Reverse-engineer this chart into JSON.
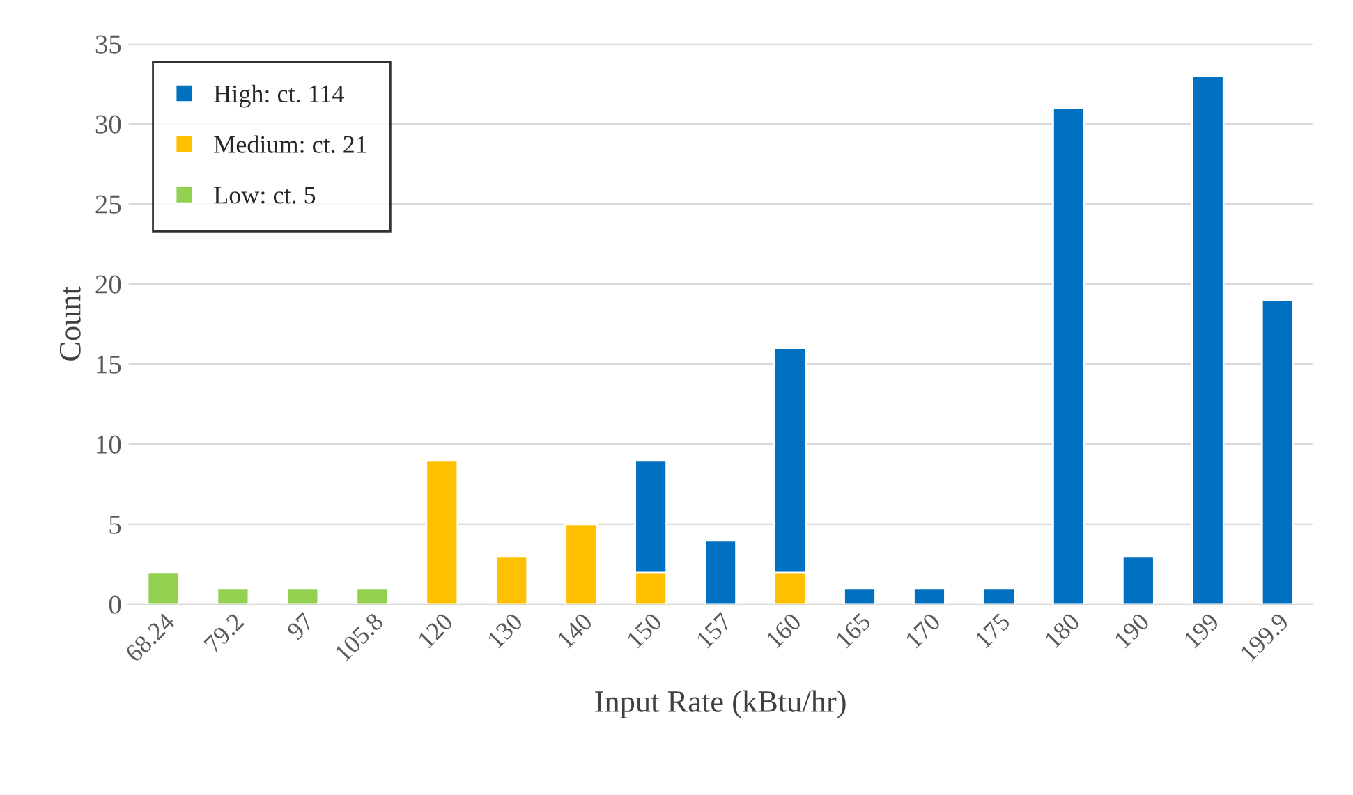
{
  "chart_data": {
    "type": "bar",
    "stacked": true,
    "xlabel": "Input Rate (kBtu/hr)",
    "ylabel": "Count",
    "categories": [
      "68.24",
      "79.2",
      "97",
      "105.8",
      "120",
      "130",
      "140",
      "150",
      "157",
      "160",
      "165",
      "170",
      "175",
      "180",
      "190",
      "199",
      "199.9"
    ],
    "series": [
      {
        "name": "Low: ct. 5",
        "color": "#92d050",
        "values": [
          2,
          1,
          1,
          1,
          null,
          null,
          null,
          null,
          null,
          null,
          null,
          null,
          null,
          null,
          null,
          null,
          null
        ]
      },
      {
        "name": "Medium: ct. 21",
        "color": "#ffc000",
        "values": [
          null,
          null,
          null,
          null,
          9,
          3,
          5,
          2,
          null,
          2,
          null,
          null,
          null,
          null,
          null,
          null,
          null
        ]
      },
      {
        "name": "High: ct. 114",
        "color": "#0070c0",
        "values": [
          null,
          null,
          null,
          null,
          null,
          null,
          null,
          7,
          4,
          14,
          1,
          1,
          1,
          31,
          3,
          33,
          19
        ]
      }
    ],
    "ylim": [
      0,
      35
    ],
    "yticks": [
      0,
      5,
      10,
      15,
      20,
      25,
      30,
      35
    ],
    "grid": "y",
    "legend": "top left"
  }
}
